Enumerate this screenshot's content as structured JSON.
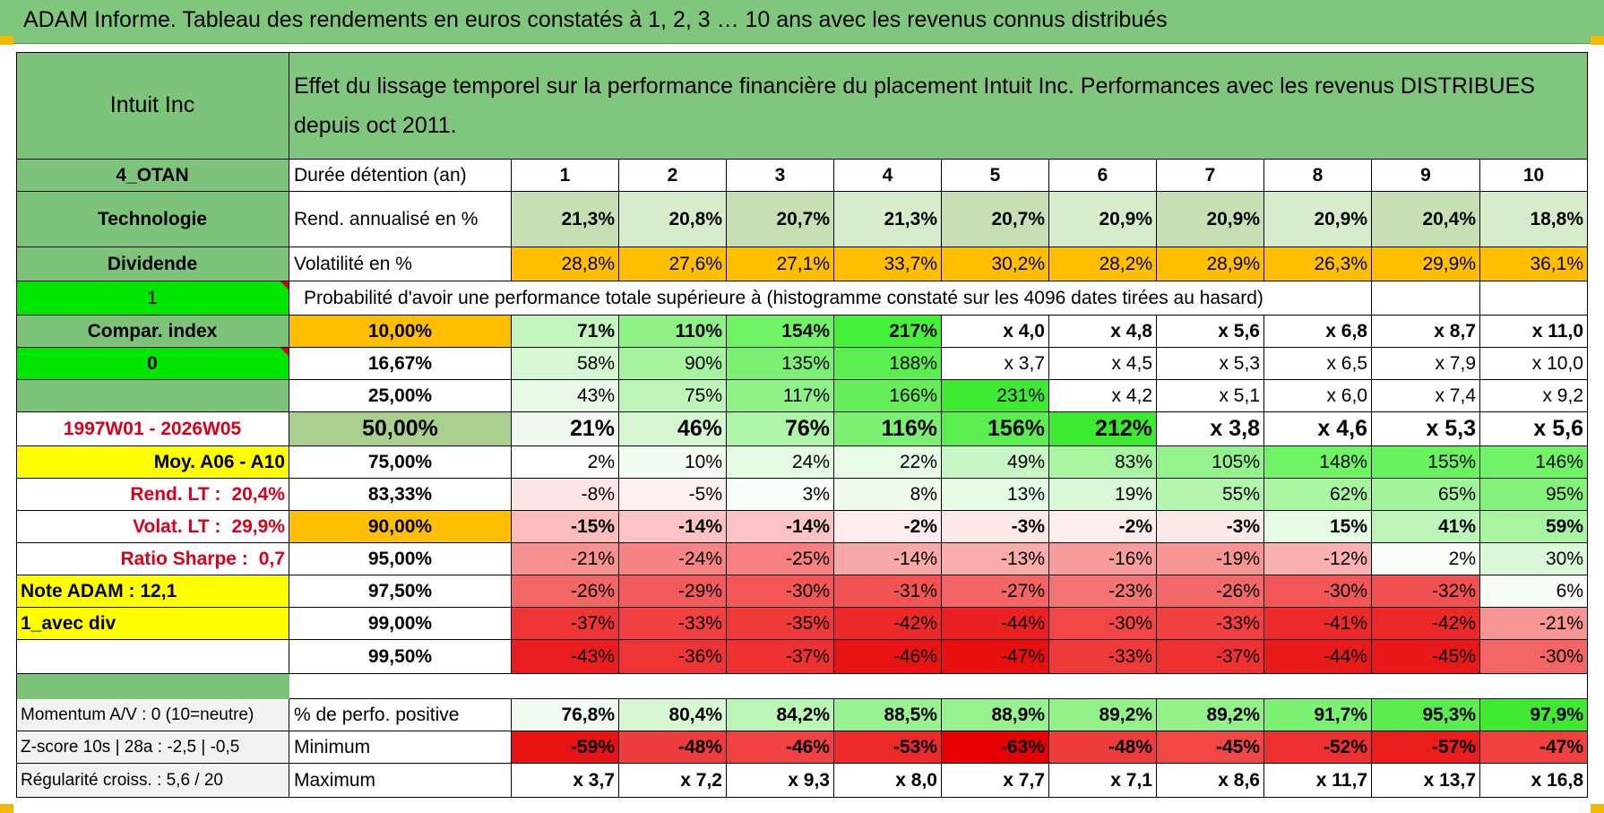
{
  "title": "ADAM Informe. Tableau des rendements en euros constatés à 1, 2, 3 … 10 ans avec les revenus connus distribués",
  "asset_name": "Intuit Inc",
  "description": "Effet du lissage temporel sur la performance financière du placement Intuit Inc. Performances avec les revenus DISTRIBUES depuis oct 2011.",
  "side_labels": {
    "code": "4_OTAN",
    "sector": "Technologie",
    "dividend": "Dividende",
    "one": "1",
    "compar": "Compar. index",
    "zero": "0",
    "period": "1997W01 - 2026W05",
    "moy": "Moy. A06 - A10",
    "rend_lt_label": "Rend. LT :",
    "rend_lt_value": "20,4%",
    "volat_lt_label": "Volat. LT :",
    "volat_lt_value": "29,9%",
    "sharpe_label": "Ratio Sharpe :",
    "sharpe_value": "0,7",
    "note_adam": "Note ADAM : 12,1",
    "avec_div": "1_avec div"
  },
  "row_labels": {
    "duration": "Durée détention (an)",
    "rend": "Rend. annualisé en %",
    "vol": "Volatilité en %",
    "proba": "Probabilité d'avoir une performance totale supérieure à (histogramme constaté sur les 4096 dates tirées au hasard)"
  },
  "years": [
    "1",
    "2",
    "3",
    "4",
    "5",
    "6",
    "7",
    "8",
    "9",
    "10"
  ],
  "rend": [
    "21,3%",
    "20,8%",
    "20,7%",
    "21,3%",
    "20,7%",
    "20,9%",
    "20,9%",
    "20,9%",
    "20,4%",
    "18,8%"
  ],
  "vol": [
    "28,8%",
    "27,6%",
    "27,1%",
    "33,7%",
    "30,2%",
    "28,2%",
    "28,9%",
    "26,3%",
    "29,9%",
    "36,1%"
  ],
  "prob_rows": [
    {
      "p": "10,00%",
      "v": [
        "71%",
        "110%",
        "154%",
        "217%",
        "x 4,0",
        "x 4,8",
        "x 5,6",
        "x 6,8",
        "x 8,7",
        "x 11,0"
      ]
    },
    {
      "p": "16,67%",
      "v": [
        "58%",
        "90%",
        "135%",
        "188%",
        "x 3,7",
        "x 4,5",
        "x 5,3",
        "x 6,5",
        "x 7,9",
        "x 10,0"
      ]
    },
    {
      "p": "25,00%",
      "v": [
        "43%",
        "75%",
        "117%",
        "166%",
        "231%",
        "x 4,2",
        "x 5,1",
        "x 6,0",
        "x 7,4",
        "x 9,2"
      ]
    },
    {
      "p": "50,00%",
      "v": [
        "21%",
        "46%",
        "76%",
        "116%",
        "156%",
        "212%",
        "x 3,8",
        "x 4,6",
        "x 5,3",
        "x 5,6"
      ]
    },
    {
      "p": "75,00%",
      "v": [
        "2%",
        "10%",
        "24%",
        "22%",
        "49%",
        "83%",
        "105%",
        "148%",
        "155%",
        "146%"
      ]
    },
    {
      "p": "83,33%",
      "v": [
        "-8%",
        "-5%",
        "3%",
        "8%",
        "13%",
        "19%",
        "55%",
        "62%",
        "65%",
        "95%"
      ]
    },
    {
      "p": "90,00%",
      "v": [
        "-15%",
        "-14%",
        "-14%",
        "-2%",
        "-3%",
        "-2%",
        "-3%",
        "15%",
        "41%",
        "59%"
      ]
    },
    {
      "p": "95,00%",
      "v": [
        "-21%",
        "-24%",
        "-25%",
        "-14%",
        "-13%",
        "-16%",
        "-19%",
        "-12%",
        "2%",
        "30%"
      ]
    },
    {
      "p": "97,50%",
      "v": [
        "-26%",
        "-29%",
        "-30%",
        "-31%",
        "-27%",
        "-23%",
        "-26%",
        "-30%",
        "-32%",
        "6%"
      ]
    },
    {
      "p": "99,00%",
      "v": [
        "-37%",
        "-33%",
        "-35%",
        "-42%",
        "-44%",
        "-30%",
        "-33%",
        "-41%",
        "-42%",
        "-21%"
      ]
    },
    {
      "p": "99,50%",
      "v": [
        "-43%",
        "-36%",
        "-37%",
        "-46%",
        "-47%",
        "-33%",
        "-37%",
        "-44%",
        "-45%",
        "-30%"
      ]
    }
  ],
  "prob_colors": [
    [
      "#c3f5bf",
      "#8ef286",
      "#6ef464",
      "#46f13a",
      "#ffffff",
      "#ffffff",
      "#ffffff",
      "#ffffff",
      "#ffffff",
      "#ffffff"
    ],
    [
      "#d5f7d2",
      "#a6f49f",
      "#7cf073",
      "#5aef4e",
      "#ffffff",
      "#ffffff",
      "#ffffff",
      "#ffffff",
      "#ffffff",
      "#ffffff"
    ],
    [
      "#e8fae6",
      "#bdf5b8",
      "#8ff288",
      "#65ee5a",
      "#3ee932",
      "#ffffff",
      "#ffffff",
      "#ffffff",
      "#ffffff",
      "#ffffff"
    ],
    [
      "#eefbec",
      "#d4f7d0",
      "#aef5a8",
      "#7cf073",
      "#5aef4e",
      "#3ee932",
      "#ffffff",
      "#ffffff",
      "#ffffff",
      "#ffffff"
    ],
    [
      "#fdfefd",
      "#f4fdf3",
      "#e6fbe4",
      "#e8fbe6",
      "#c9f6c5",
      "#a8f4a1",
      "#93f28b",
      "#6ef464",
      "#69f35f",
      "#70f366"
    ],
    [
      "#fde5e5",
      "#fdf0f0",
      "#f7fdf7",
      "#eefbec",
      "#e6fbe4",
      "#d9f8d6",
      "#b4f5ad",
      "#a8f4a1",
      "#a2f49b",
      "#84f17b"
    ],
    [
      "#fbbcbc",
      "#fbc3c3",
      "#fbc3c3",
      "#fdecec",
      "#fde8e8",
      "#fdecec",
      "#fde8e8",
      "#e6fbe4",
      "#bdf5b8",
      "#a8f4a1"
    ],
    [
      "#f79090",
      "#f68484",
      "#f68080",
      "#f9a8a8",
      "#f9acac",
      "#f89c9c",
      "#f79494",
      "#f9b0b0",
      "#fafefa",
      "#dbf8d8"
    ],
    [
      "#f36666",
      "#f25b5b",
      "#f25656",
      "#f25454",
      "#f36464",
      "#f47474",
      "#f36868",
      "#f25656",
      "#f15050",
      "#f5fdf4"
    ],
    [
      "#ee3636",
      "#f04040",
      "#ef3a3a",
      "#ec2828",
      "#eb2020",
      "#f04646",
      "#f04040",
      "#ec2a2a",
      "#ec2828",
      "#f79494"
    ],
    [
      "#ea1e1e",
      "#ee3434",
      "#ed3030",
      "#e81414",
      "#e80f0f",
      "#ef3a3a",
      "#ed3030",
      "#e91a1a",
      "#e91818",
      "#f36666"
    ]
  ],
  "bottom": {
    "momentum": "Momentum A/V : 0 (10=neutre)",
    "zscore": "Z-score 10s | 28a : -2,5 | -0,5",
    "regul": "Régularité croiss. : 5,6 / 20",
    "pos_label": "% de perfo. positive",
    "min_label": "Minimum",
    "max_label": "Maximum",
    "pos": [
      "76,8%",
      "80,4%",
      "84,2%",
      "88,5%",
      "88,9%",
      "89,2%",
      "89,2%",
      "91,7%",
      "95,3%",
      "97,9%"
    ],
    "min": [
      "-59%",
      "-48%",
      "-46%",
      "-53%",
      "-63%",
      "-48%",
      "-45%",
      "-52%",
      "-57%",
      "-47%"
    ],
    "max": [
      "x 3,7",
      "x 7,2",
      "x 9,3",
      "x 8,0",
      "x 7,7",
      "x 7,1",
      "x 8,6",
      "x 11,7",
      "x 13,7",
      "x 16,8"
    ],
    "pos_colors": [
      "#f0fcef",
      "#d7f8d3",
      "#b9f5b3",
      "#98f28f",
      "#95f28c",
      "#92f289",
      "#92f289",
      "#7bf071",
      "#5bed4f",
      "#3fe932"
    ],
    "min_colors": [
      "#e71212",
      "#ef3c3c",
      "#f04242",
      "#ec2a2a",
      "#e60000",
      "#ef3c3c",
      "#f04646",
      "#ee3030",
      "#ea1c1c",
      "#f04040"
    ]
  },
  "colors": {
    "header_green": "#80c77d",
    "label_green": "#7dc47a",
    "bright_green": "#00e600",
    "yellow": "#ffff00",
    "orange": "#ffbf00",
    "rend_light": "#c6e0b4",
    "rend_lighter": "#d6eccb",
    "median_cell": "#a9d08e",
    "red_text": "#d8001b"
  }
}
